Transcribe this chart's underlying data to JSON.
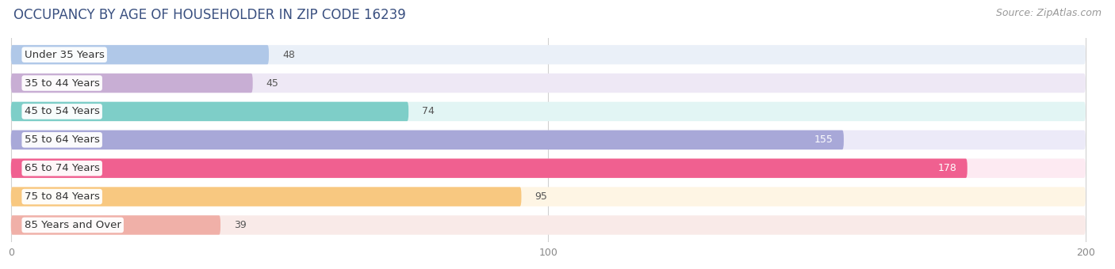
{
  "title": "OCCUPANCY BY AGE OF HOUSEHOLDER IN ZIP CODE 16239",
  "source": "Source: ZipAtlas.com",
  "categories": [
    "Under 35 Years",
    "35 to 44 Years",
    "45 to 54 Years",
    "55 to 64 Years",
    "65 to 74 Years",
    "75 to 84 Years",
    "85 Years and Over"
  ],
  "values": [
    48,
    45,
    74,
    155,
    178,
    95,
    39
  ],
  "bar_colors": [
    "#b0c8e8",
    "#c8aed4",
    "#7ecec8",
    "#a8a8d8",
    "#f06090",
    "#f8c880",
    "#f0b0a8"
  ],
  "bar_bg_colors": [
    "#eaf0f8",
    "#eee8f5",
    "#e2f5f4",
    "#eceaf8",
    "#fdeaf2",
    "#fef5e4",
    "#f9eae8"
  ],
  "title_color": "#3a5080",
  "source_color": "#999999",
  "xlim_max": 200,
  "xticks": [
    0,
    100,
    200
  ],
  "background_color": "#ffffff",
  "title_fontsize": 12,
  "label_fontsize": 9.5,
  "value_fontsize": 9,
  "source_fontsize": 9,
  "white_text_threshold": 130
}
